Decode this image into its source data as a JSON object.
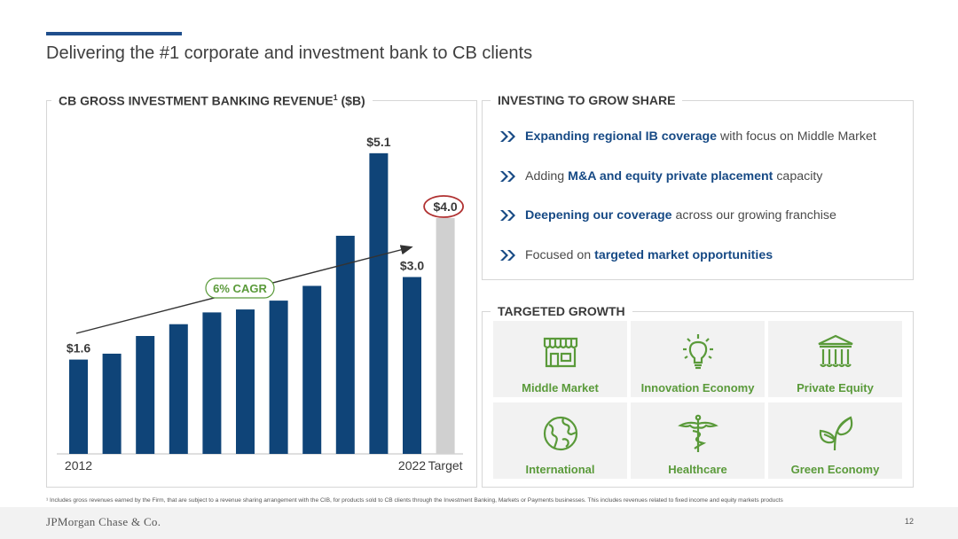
{
  "title": "Delivering the #1 corporate and investment bank to CB clients",
  "chart_panel": {
    "title_main": "CB GROSS INVESTMENT BANKING REVENUE",
    "title_sup": "1",
    "title_unit": " ($B)"
  },
  "chart_data": {
    "type": "bar",
    "title": "CB GROSS INVESTMENT BANKING REVENUE ($B)",
    "unit": "$B",
    "categories": [
      "2012",
      "2013",
      "2014",
      "2015",
      "2016",
      "2017",
      "2018",
      "2019",
      "2020",
      "2021",
      "2022",
      "Target"
    ],
    "values": [
      1.6,
      1.7,
      2.0,
      2.2,
      2.4,
      2.45,
      2.6,
      2.85,
      3.7,
      5.1,
      3.0,
      4.0
    ],
    "value_labels": [
      "$1.6",
      "",
      "",
      "",
      "",
      "",
      "",
      "",
      "",
      "$5.1",
      "$3.0",
      "$4.0"
    ],
    "x_tick_labels": [
      "2012",
      "",
      "",
      "",
      "",
      "",
      "",
      "",
      "",
      "",
      "2022",
      "Target"
    ],
    "annotation": "6% CAGR",
    "colors": {
      "bar": "#0f4478",
      "target_bar": "#d0d0d0",
      "cagr": "#5a9a3a",
      "target_circle": "#b03030"
    },
    "ylim": [
      0,
      6
    ],
    "grid": false
  },
  "investing": {
    "title": "INVESTING TO GROW SHARE",
    "items": [
      {
        "pre": "",
        "bold": "Expanding regional IB coverage",
        "post": " with focus on Middle Market"
      },
      {
        "pre": "Adding ",
        "bold": "M&A and equity private placement",
        "post": " capacity"
      },
      {
        "pre": "",
        "bold": "Deepening our coverage",
        "post": " across our growing franchise"
      },
      {
        "pre": "Focused on ",
        "bold": "targeted market opportunities",
        "post": ""
      }
    ]
  },
  "targeted": {
    "title": "TARGETED GROWTH",
    "tiles": [
      {
        "label": "Middle Market",
        "icon": "storefront-icon"
      },
      {
        "label": "Innovation Economy",
        "icon": "lightbulb-icon"
      },
      {
        "label": "Private Equity",
        "icon": "bank-building-icon"
      },
      {
        "label": "International",
        "icon": "globe-icon"
      },
      {
        "label": "Healthcare",
        "icon": "caduceus-icon"
      },
      {
        "label": "Green Economy",
        "icon": "sprout-icon"
      }
    ]
  },
  "footnote": "¹ Includes gross revenues earned by the Firm, that are subject to a revenue sharing arrangement with the CIB, for products sold to CB clients through the Investment Banking, Markets or Payments businesses. This includes revenues related to fixed income and equity markets products",
  "footer": {
    "logo": "JPMorgan Chase & Co.",
    "page": "12"
  }
}
